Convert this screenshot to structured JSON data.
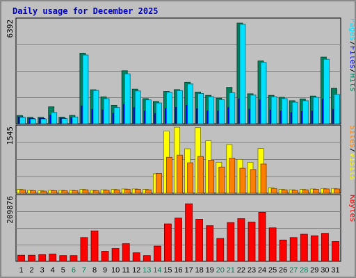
{
  "chart_data": {
    "type": "bar",
    "title": "Daily usage for December 2025",
    "days": [
      "1",
      "2",
      "3",
      "4",
      "5",
      "6",
      "7",
      "8",
      "9",
      "10",
      "11",
      "12",
      "13",
      "14",
      "15",
      "16",
      "17",
      "18",
      "19",
      "20",
      "21",
      "22",
      "23",
      "24",
      "25",
      "26",
      "27",
      "28",
      "29",
      "30",
      "31"
    ],
    "weekend_days": [
      "6",
      "7",
      "13",
      "14",
      "20",
      "21",
      "27",
      "28"
    ],
    "colors": {
      "hits": "#00805c",
      "files": "#0000ff",
      "pages": "#00e0ff",
      "visits": "#ffff00",
      "sites": "#ff8000",
      "kbytes": "#ff0000",
      "weekend_label": "#00805c",
      "weekday_label": "#000000"
    },
    "panels": [
      {
        "id": "hits-files-pages",
        "ymax_label": "6392",
        "ymax": 6392,
        "legend": [
          {
            "text": "Pages",
            "color": "#00e0ff"
          },
          {
            "text": "/",
            "color": "#000000"
          },
          {
            "text": "Files",
            "color": "#0000ff"
          },
          {
            "text": "/",
            "color": "#000000"
          },
          {
            "text": "Hits",
            "color": "#00805c"
          }
        ],
        "series": [
          {
            "name": "Hits",
            "values": [
              510,
              400,
              400,
              1050,
              410,
              520,
              4390,
              2110,
              1670,
              1150,
              3290,
              2150,
              1560,
              1380,
              2010,
              2120,
              2580,
              1970,
              1760,
              1590,
              2260,
              6260,
              1860,
              3900,
              1760,
              1640,
              1430,
              1540,
              1720,
              4140,
              2200
            ]
          },
          {
            "name": "Files",
            "values": [
              420,
              320,
              330,
              540,
              340,
              380,
              1110,
              900,
              860,
              650,
              1200,
              1000,
              780,
              640,
              950,
              1020,
              1150,
              930,
              800,
              780,
              1000,
              1550,
              900,
              1480,
              850,
              800,
              700,
              760,
              800,
              1520,
              900
            ]
          },
          {
            "name": "Pages",
            "values": [
              400,
              300,
              300,
              700,
              320,
              420,
              4270,
              2070,
              1560,
              1010,
              3100,
              2040,
              1480,
              1290,
              1960,
              2060,
              2470,
              1880,
              1680,
              1500,
              1920,
              6180,
              1780,
              3810,
              1680,
              1560,
              1340,
              1430,
              1640,
              4010,
              1820
            ]
          }
        ]
      },
      {
        "id": "visits-sites",
        "ymax_label": "1545",
        "ymax": 1545,
        "legend": [
          {
            "text": "Sites",
            "color": "#ff8000"
          },
          {
            "text": "/",
            "color": "#000000"
          },
          {
            "text": "Visits",
            "color": "#ffff00"
          }
        ],
        "series": [
          {
            "name": "Visits",
            "values": [
              90,
              70,
              60,
              70,
              70,
              70,
              90,
              70,
              80,
              90,
              100,
              100,
              90,
              460,
              1470,
              1560,
              1050,
              1550,
              1240,
              730,
              1150,
              800,
              730,
              1060,
              130,
              90,
              80,
              90,
              100,
              110,
              110
            ]
          },
          {
            "name": "Sites",
            "values": [
              80,
              60,
              50,
              60,
              60,
              60,
              80,
              60,
              70,
              80,
              90,
              90,
              80,
              470,
              850,
              900,
              720,
              870,
              780,
              620,
              830,
              590,
              560,
              690,
              110,
              80,
              70,
              80,
              90,
              100,
              100
            ]
          }
        ]
      },
      {
        "id": "kbytes",
        "ymax_label": "209876",
        "ymax": 209876,
        "legend": [
          {
            "text": "KBytes",
            "color": "#ff0000"
          }
        ],
        "series": [
          {
            "name": "KBytes",
            "values": [
              20000,
              20000,
              22000,
              24000,
              19000,
              19000,
              78000,
              100000,
              33000,
              42000,
              58000,
              28000,
              19000,
              50000,
              123000,
              142000,
              189000,
              138000,
              117000,
              75000,
              127000,
              140000,
              129000,
              161000,
              110000,
              70000,
              78000,
              89000,
              84000,
              92000,
              65000
            ]
          }
        ]
      }
    ]
  }
}
